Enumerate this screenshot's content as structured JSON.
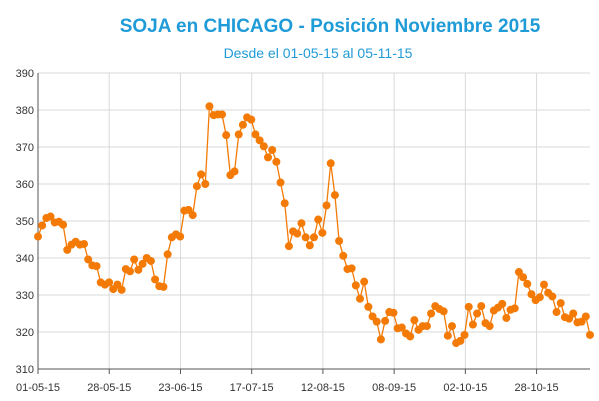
{
  "chart_data": {
    "type": "line",
    "title": "SOJA en CHICAGO - Posición Noviembre 2015",
    "subtitle": "Desde el 01-05-15 al 05-11-15",
    "xlabel": "",
    "ylabel": "",
    "ylim": [
      310,
      390
    ],
    "y_ticks": [
      310,
      320,
      330,
      340,
      350,
      360,
      370,
      380,
      390
    ],
    "x_tick_labels": [
      "01-05-15",
      "28-05-15",
      "23-06-15",
      "17-07-15",
      "12-08-15",
      "08-09-15",
      "02-10-15",
      "28-10-15"
    ],
    "grid": true,
    "legend": "none",
    "colors": {
      "series": "#f47a06",
      "grid": "#d9d9d9",
      "title": "#1f9bd7"
    },
    "series": [
      {
        "values": [
          345.8,
          348.8,
          350.8,
          351.2,
          349.6,
          349.8,
          349.0,
          342.2,
          343.6,
          344.4,
          343.6,
          343.8,
          339.6,
          338.0,
          337.8,
          333.4,
          332.8,
          333.4,
          331.6,
          332.8,
          331.4,
          337.0,
          336.4,
          339.6,
          336.8,
          338.4,
          340.0,
          339.2,
          334.2,
          332.4,
          332.2,
          341.0,
          345.6,
          346.4,
          345.8,
          352.8,
          353.0,
          351.6,
          359.4,
          362.6,
          360.0,
          381.0,
          378.6,
          378.8,
          378.8,
          373.2,
          362.4,
          363.4,
          373.4,
          376.0,
          378.0,
          377.4,
          373.4,
          371.8,
          370.2,
          367.2,
          369.2,
          366.0,
          360.4,
          354.8,
          343.2,
          347.2,
          346.6,
          349.4,
          345.6,
          343.4,
          345.6,
          350.4,
          346.8,
          354.2,
          365.6,
          357.0,
          344.6,
          340.6,
          337.0,
          337.2,
          332.6,
          329.0,
          333.6,
          326.8,
          324.2,
          322.8,
          318.0,
          323.0,
          325.4,
          325.2,
          321.0,
          321.2,
          319.6,
          318.8,
          323.2,
          320.6,
          321.6,
          321.6,
          325.0,
          327.0,
          326.2,
          325.6,
          319.0,
          321.6,
          317.0,
          317.6,
          319.2,
          326.8,
          322.0,
          325.0,
          327.0,
          322.4,
          321.6,
          325.8,
          326.6,
          327.6,
          323.8,
          326.0,
          326.4,
          336.2,
          334.8,
          333.0,
          330.2,
          328.6,
          329.4,
          332.8,
          330.6,
          329.6,
          325.4,
          327.8,
          324.0,
          323.6,
          325.0,
          322.6,
          322.8,
          324.2,
          319.2
        ]
      }
    ]
  }
}
